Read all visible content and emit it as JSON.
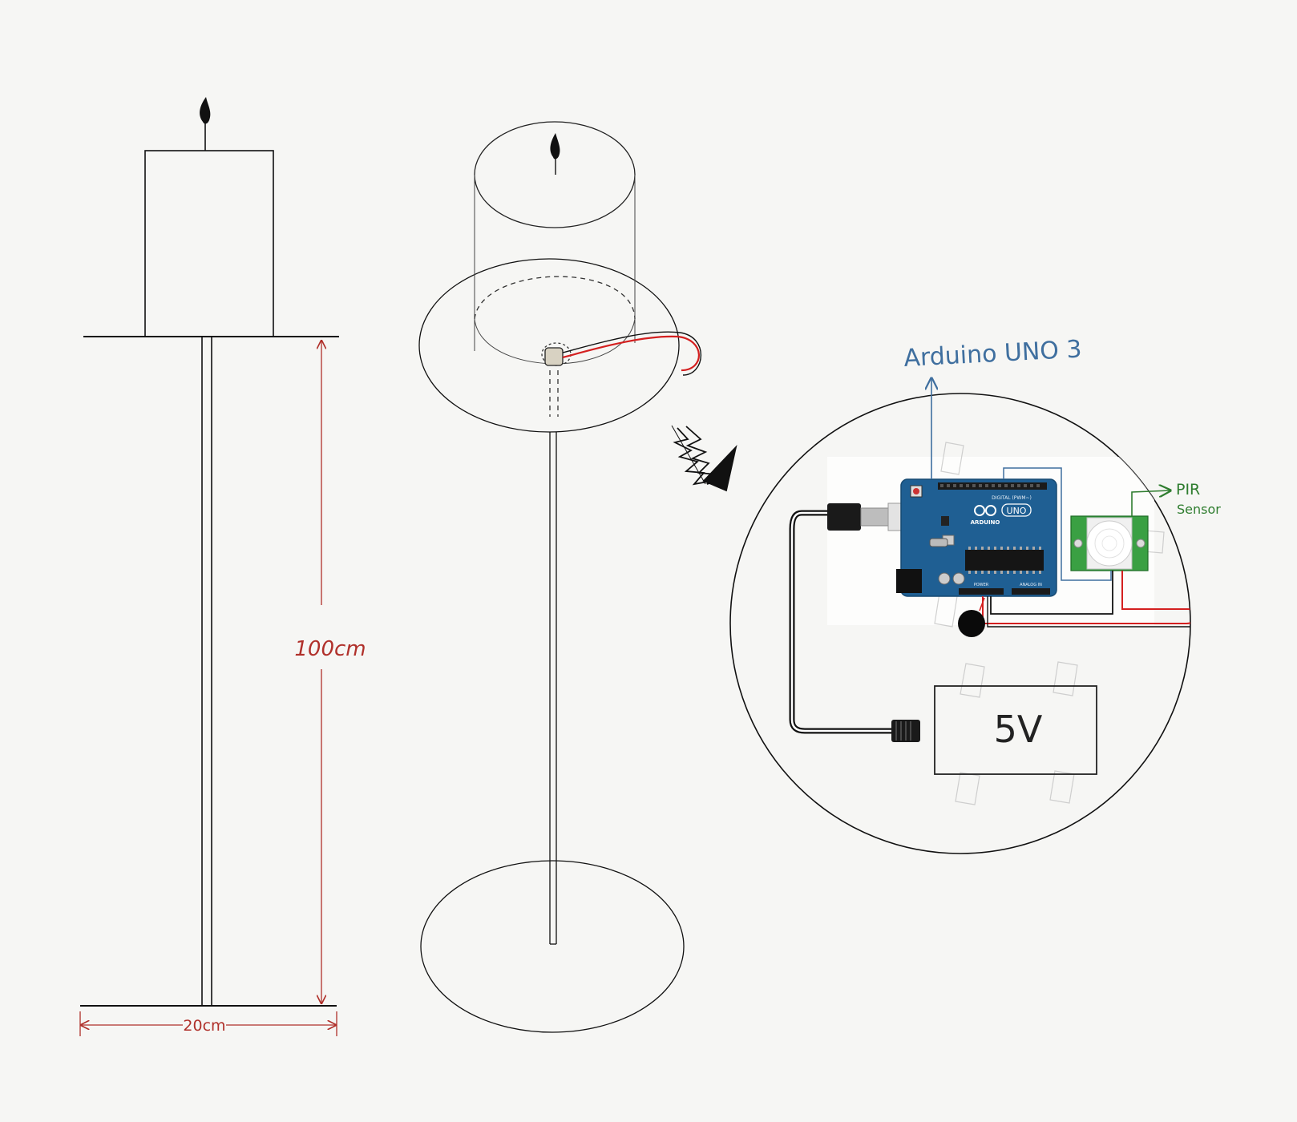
{
  "labels": {
    "height_dimension": "100cm",
    "width_dimension": "20cm",
    "board_callout": "Arduino UNO 3",
    "sensor_callout_line1": "PIR",
    "sensor_callout_line2": "Sensor",
    "power_label": "5V",
    "board_brand": "ARDUINO",
    "board_model": "UNO",
    "board_digital": "DIGITAL (PWM~)",
    "board_power": "POWER",
    "board_analog": "ANALOG IN"
  },
  "colors": {
    "ink": "#111111",
    "dimension_red": "#b0302a",
    "wire_red": "#d42020",
    "callout_blue": "#3f6f9f",
    "callout_green": "#2f7d2f",
    "arduino_blue": "#1f5f93",
    "pir_green": "#3aa043",
    "tape": "#c8c8c8"
  },
  "icons": {
    "flame": "flame-icon",
    "arrow": "zigzag-arrow-icon",
    "speaker": "piezo-buzzer-icon"
  }
}
